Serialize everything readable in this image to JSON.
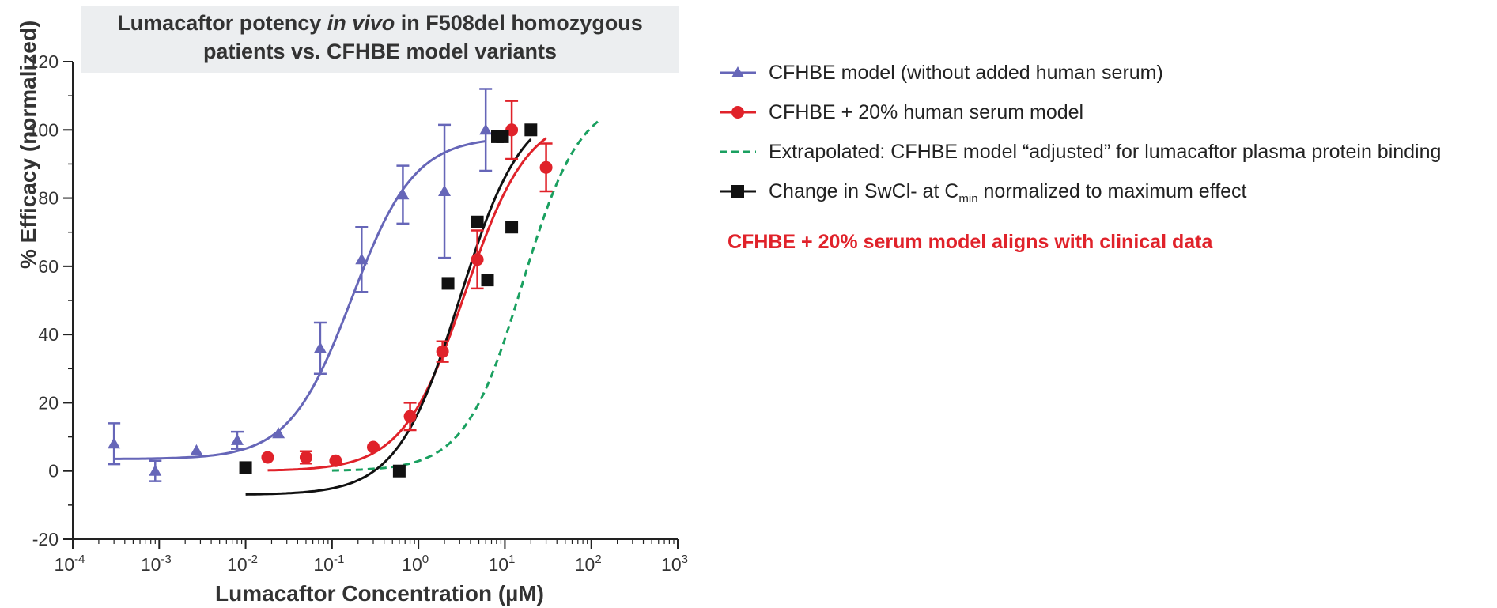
{
  "chart_data": {
    "type": "scatter",
    "title_parts": [
      {
        "text": "Lumacaftor potency ",
        "italic": false
      },
      {
        "text": "in vivo",
        "italic": true
      },
      {
        "text": " in F508del homozygous",
        "italic": false
      },
      {
        "text": "patients vs. CFHBE model variants",
        "italic": false,
        "newline": true
      }
    ],
    "xlabel": "Lumacaftor Concentration (µM)",
    "ylabel": "% Efficacy (normalized)",
    "x_scale": "log",
    "xlim": [
      0.0001,
      1000
    ],
    "ylim": [
      -20,
      120
    ],
    "x_ticks": [
      {
        "value": 0.0001,
        "base": "10",
        "exp": "-4"
      },
      {
        "value": 0.001,
        "base": "10",
        "exp": "-3"
      },
      {
        "value": 0.01,
        "base": "10",
        "exp": "-2"
      },
      {
        "value": 0.1,
        "base": "10",
        "exp": "-1"
      },
      {
        "value": 1,
        "base": "10",
        "exp": "0"
      },
      {
        "value": 10,
        "base": "10",
        "exp": "1"
      },
      {
        "value": 100,
        "base": "10",
        "exp": "2"
      },
      {
        "value": 1000,
        "base": "10",
        "exp": "3"
      }
    ],
    "y_ticks": [
      "-20",
      "0",
      "20",
      "40",
      "60",
      "80",
      "100",
      "120"
    ],
    "legend_position": "right",
    "series": [
      {
        "name": "CFHBE model (without added human serum)",
        "color": "#6666b8",
        "marker": "triangle",
        "points": [
          {
            "x": 0.0003,
            "y": 8,
            "err": 6
          },
          {
            "x": 0.0009,
            "y": 0,
            "err": 3
          },
          {
            "x": 0.0027,
            "y": 6
          },
          {
            "x": 0.008,
            "y": 9,
            "err": 2.5
          },
          {
            "x": 0.024,
            "y": 11
          },
          {
            "x": 0.073,
            "y": 36,
            "err": 7.5
          },
          {
            "x": 0.22,
            "y": 62,
            "err": 9.5
          },
          {
            "x": 0.66,
            "y": 81,
            "err": 8.5
          },
          {
            "x": 2.0,
            "y": 82,
            "err": 19.5
          },
          {
            "x": 6.0,
            "y": 100,
            "err": 12
          }
        ],
        "curve": {
          "bottom": 3.5,
          "top": 98,
          "ec50": 0.17,
          "hill": 1.2,
          "from": 0.0003,
          "to": 6
        }
      },
      {
        "name": "CFHBE + 20% human serum model",
        "color": "#e0222a",
        "marker": "circle",
        "points": [
          {
            "x": 0.018,
            "y": 4
          },
          {
            "x": 0.05,
            "y": 4,
            "err": 1.8
          },
          {
            "x": 0.11,
            "y": 3
          },
          {
            "x": 0.3,
            "y": 7
          },
          {
            "x": 0.8,
            "y": 16,
            "err": 4
          },
          {
            "x": 1.9,
            "y": 35,
            "err": 3
          },
          {
            "x": 4.8,
            "y": 62,
            "err": 8.5
          },
          {
            "x": 12,
            "y": 100,
            "err": 8.5
          },
          {
            "x": 30,
            "y": 89,
            "err": 7
          }
        ],
        "curve": {
          "bottom": 0,
          "top": 105,
          "ec50": 3.5,
          "hill": 1.2,
          "from": 0.018,
          "to": 30
        }
      },
      {
        "name": "Extrapolated: CFHBE model “adjusted” for lumacaftor plasma protein binding",
        "color": "#1aa060",
        "marker": "dashed",
        "points": [],
        "curve": {
          "bottom": 0,
          "top": 110,
          "ec50": 16,
          "hill": 1.3,
          "from": 0.1,
          "to": 120
        }
      },
      {
        "name": "Change in SwCl- at C",
        "name_sub": "min",
        "name_after": " normalized to maximum effect",
        "color": "#111111",
        "marker": "square",
        "points": [
          {
            "x": 0.01,
            "y": 1
          },
          {
            "x": 0.6,
            "y": 0
          },
          {
            "x": 2.2,
            "y": 55
          },
          {
            "x": 4.8,
            "y": 73
          },
          {
            "x": 6.3,
            "y": 56
          },
          {
            "x": 8.2,
            "y": 98
          },
          {
            "x": 9.4,
            "y": 98
          },
          {
            "x": 12,
            "y": 71.5
          },
          {
            "x": 20,
            "y": 100
          }
        ],
        "curve": {
          "bottom": -7,
          "top": 108,
          "ec50": 3.0,
          "hill": 1.2,
          "from": 0.01,
          "to": 20
        }
      }
    ],
    "annotation": "CFHBE + 20% serum model aligns with clinical data"
  }
}
